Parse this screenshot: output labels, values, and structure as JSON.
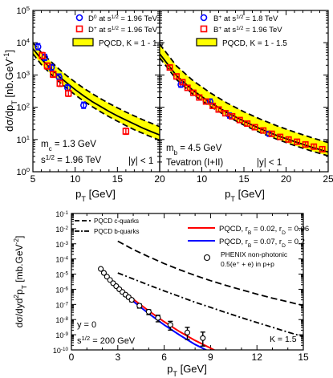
{
  "chart_data": [
    {
      "type": "scatter",
      "ylabel": "dσ/dp",
      "ylabel_sub": "T",
      "ylabel_unit": " [nb.GeV",
      "ylabel_unit_sup": "-1",
      "ylabel_unit_close": "]",
      "xlabel": "p",
      "xlabel_sub": "T",
      "xlabel_unit": " [GeV]",
      "xlim": [
        5,
        20
      ],
      "ylim": [
        1,
        100000
      ],
      "yscale": "log",
      "xticks": [
        5,
        10,
        15,
        20
      ],
      "yticks": [
        {
          "v": 1,
          "m": "10",
          "e": "0"
        },
        {
          "v": 10,
          "m": "10",
          "e": "1"
        },
        {
          "v": 100,
          "m": "10",
          "e": "2"
        },
        {
          "v": 1000,
          "m": "10",
          "e": "3"
        },
        {
          "v": 10000,
          "m": "10",
          "e": "4"
        },
        {
          "v": 100000,
          "m": "10",
          "e": "5"
        }
      ],
      "legend": [
        {
          "name": "D⁰ at s¹ᐟ² = 1.96 TeV",
          "marker": "circle",
          "color": "#0000ff"
        },
        {
          "name": "D⁺ at s¹ᐟ² = 1.96 TeV",
          "marker": "square",
          "color": "#ff0000"
        },
        {
          "name": "PQCD, K = 1 - 1.5",
          "marker": "band",
          "color": "#ffff00"
        }
      ],
      "annotations": [
        "m",
        "c",
        " = 1.3 GeV",
        "s",
        "1/2",
        " = 1.96 TeV",
        "|y| < 1"
      ],
      "series": [
        {
          "name": "D⁰ at s¹ᐟ² = 1.96 TeV",
          "marker": "circle",
          "color": "#0000ff",
          "x": [
            5.6,
            6.4,
            7.2,
            8.1,
            9.1,
            11.0
          ],
          "y": [
            7500,
            3500,
            1700,
            860,
            400,
            115
          ]
        },
        {
          "name": "D⁺ at s¹ᐟ² = 1.96 TeV",
          "marker": "square",
          "color": "#ff0000",
          "x": [
            6.1,
            6.7,
            7.4,
            8.2,
            9.2,
            16.0
          ],
          "y": [
            4000,
            1900,
            1050,
            550,
            270,
            18
          ]
        }
      ],
      "band": {
        "x": [
          5,
          6,
          7,
          8,
          9,
          10,
          11,
          12,
          13,
          14,
          15,
          16,
          17,
          18,
          19,
          20
        ],
        "upper": [
          10000,
          5000,
          2800,
          1600,
          950,
          600,
          390,
          265,
          185,
          132,
          96,
          71,
          54,
          41,
          32,
          25
        ],
        "lower": [
          4500,
          2100,
          1150,
          650,
          390,
          240,
          155,
          105,
          72,
          51,
          37,
          27,
          20,
          15.5,
          12,
          9.5
        ],
        "solid": [
          6500,
          3100,
          1700,
          950,
          570,
          350,
          225,
          150,
          105,
          74,
          54,
          40,
          30,
          22.5,
          17.5,
          13.8
        ]
      }
    },
    {
      "type": "scatter",
      "xlabel": "p",
      "xlabel_sub": "T",
      "xlabel_unit": " [GeV]",
      "xlim": [
        5,
        25
      ],
      "ylim": [
        1,
        100000
      ],
      "yscale": "log",
      "xticks": [
        5,
        10,
        15,
        20,
        25
      ],
      "legend": [
        {
          "name": "B⁺ at s¹ᐟ² = 1.8 TeV",
          "marker": "circle",
          "color": "#0000ff"
        },
        {
          "name": "B⁺ at s¹ᐟ² = 1.96 TeV",
          "marker": "square",
          "color": "#ff0000"
        },
        {
          "name": "PQCD, K = 1 - 1.5",
          "marker": "band",
          "color": "#ffff00"
        }
      ],
      "annotations": [
        "m",
        "b",
        " = 4.5 GeV",
        "Tevatron (I+II)",
        "|y| < 1"
      ],
      "series": [
        {
          "name": "B⁺ at s¹ᐟ² = 1.8 TeV",
          "marker": "circle",
          "color": "#0000ff",
          "x": [
            7.5,
            11.0,
            13.3,
            18.0
          ],
          "y": [
            500,
            150,
            55,
            15
          ]
        },
        {
          "name": "B⁺ at s¹ᐟ² = 1.96 TeV",
          "marker": "square",
          "color": "#ff0000",
          "x": [
            6.2,
            7.0,
            7.7,
            8.3,
            9.0,
            9.7,
            10.5,
            11.3,
            12.0,
            12.8,
            13.6,
            14.5,
            15.4,
            16.3,
            17.3,
            18.3,
            19.3,
            20.3,
            21.3,
            22.3,
            23.3,
            24.3
          ],
          "y": [
            1700,
            900,
            600,
            400,
            280,
            200,
            150,
            110,
            85,
            65,
            52,
            40,
            31,
            24,
            19,
            15,
            12,
            10,
            8.5,
            7,
            6,
            5
          ]
        }
      ],
      "band": {
        "x": [
          5,
          7,
          9,
          11,
          13,
          15,
          17,
          19,
          21,
          23,
          25
        ],
        "upper": [
          9000,
          1900,
          650,
          280,
          135,
          72,
          42,
          26,
          17,
          11.5,
          8
        ],
        "lower": [
          3400,
          720,
          245,
          105,
          52,
          28,
          16,
          10,
          6.5,
          4.4,
          3.1
        ],
        "solid": [
          4500,
          950,
          325,
          140,
          68,
          37,
          21,
          13,
          8.6,
          5.8,
          4.1
        ]
      }
    },
    {
      "type": "line",
      "ylabel": "dσ/dyd",
      "ylabel_sup1": "2",
      "ylabel_p": "p",
      "ylabel_sub": "T",
      "ylabel_unit": " [mb.GeV",
      "ylabel_unit_sup": "-2",
      "ylabel_unit_close": "]",
      "xlabel": "p",
      "xlabel_sub": "T",
      "xlabel_unit": " [GeV]",
      "xlim": [
        0,
        15
      ],
      "ylim": [
        1e-10,
        0.1
      ],
      "yscale": "log",
      "xticks": [
        0,
        3,
        6,
        9,
        12,
        15
      ],
      "yticks": [
        {
          "v": 1e-10,
          "m": "10",
          "e": "-10"
        },
        {
          "v": 1e-09,
          "m": "10",
          "e": "-9"
        },
        {
          "v": 1e-08,
          "m": "10",
          "e": "-8"
        },
        {
          "v": 1e-07,
          "m": "10",
          "e": "-7"
        },
        {
          "v": 1e-06,
          "m": "10",
          "e": "-6"
        },
        {
          "v": 1e-05,
          "m": "10",
          "e": "-5"
        },
        {
          "v": 0.0001,
          "m": "10",
          "e": "-4"
        },
        {
          "v": 0.001,
          "m": "10",
          "e": "-3"
        },
        {
          "v": 0.01,
          "m": "10",
          "e": "-2"
        },
        {
          "v": 0.1,
          "m": "10",
          "e": "-1"
        }
      ],
      "legend": [
        {
          "name": "PQCD c-quarks",
          "style": "dashed",
          "color": "#000000"
        },
        {
          "name": "PQCD b-quarks",
          "style": "dashdot",
          "color": "#000000"
        },
        {
          "name": "PQCD, r",
          "sub1": "B",
          "mid": " = 0.02, r",
          "sub2": "D",
          "end": " = 0.06",
          "style": "solid",
          "color": "#ff0000"
        },
        {
          "name": "PQCD, r",
          "sub1": "B",
          "mid": " = 0.07, r",
          "sub2": "D",
          "end": " = 0.2",
          "style": "solid",
          "color": "#0000ff"
        },
        {
          "name": "PHENIX non-photonic",
          "line2": "0.5(e⁺ + e) in p+p",
          "marker": "circle",
          "color": "#000000"
        }
      ],
      "annotations": [
        "y = 0",
        "s",
        "1/2",
        " = 200 GeV",
        "K = 1.5"
      ],
      "series": [
        {
          "name": "PQCD c-quarks",
          "style": "dashed",
          "color": "#000000",
          "x": [
            3,
            4,
            5,
            6,
            7,
            8,
            9,
            10,
            11,
            12,
            13,
            14,
            15
          ],
          "y": [
            0.0015,
            0.00042,
            0.00014,
            5e-05,
            1.95e-05,
            8.2e-06,
            3.7e-06,
            1.8e-06,
            9.2e-07,
            4.8e-07,
            2.6e-07,
            1.5e-07,
            8.5e-08
          ]
        },
        {
          "name": "PQCD b-quarks",
          "style": "dashdot",
          "color": "#000000",
          "x": [
            3,
            4,
            5,
            6,
            7,
            8,
            9,
            10,
            11,
            12,
            13,
            14,
            15
          ],
          "y": [
            1.2e-05,
            4.8e-06,
            1.9e-06,
            7.8e-07,
            3.3e-07,
            1.4e-07,
            6.4e-08,
            2.9e-08,
            1.35e-08,
            6.4e-09,
            3.1e-09,
            1.5e-09,
            7.5e-10
          ]
        },
        {
          "name": "PQCD, rB = 0.02, rD = 0.06",
          "style": "solid",
          "color": "#ff0000",
          "x": [
            1.8,
            2.5,
            3,
            3.5,
            4,
            5,
            6,
            7,
            8,
            9,
            9.8
          ],
          "y": [
            2.6e-05,
            4.8e-06,
            1.6e-06,
            5.8e-07,
            2.2e-07,
            3.8e-08,
            7.2e-09,
            1.6e-09,
            4.2e-10,
            1.3e-10,
            5e-11
          ]
        },
        {
          "name": "PQCD, rB = 0.07, rD = 0.2",
          "style": "solid",
          "color": "#0000ff",
          "x": [
            1.8,
            2.5,
            3,
            3.5,
            4,
            5,
            6,
            7,
            8,
            9,
            9.5
          ],
          "y": [
            2.4e-05,
            4.2e-06,
            1.3e-06,
            4.5e-07,
            1.6e-07,
            2.5e-08,
            4.5e-09,
            9.5e-10,
            2.3e-10,
            7e-11,
            4e-11
          ]
        },
        {
          "name": "PHENIX non-photonic 0.5(e+ + e) in p+p",
          "marker": "circle",
          "color": "#000000",
          "x": [
            1.9,
            2.1,
            2.3,
            2.5,
            2.7,
            2.9,
            3.1,
            3.3,
            3.5,
            3.7,
            3.9,
            4.4,
            5.0,
            5.6,
            6.4,
            7.5,
            8.5
          ],
          "y": [
            2.2e-05,
            1.2e-05,
            6.8e-06,
            4.1e-06,
            2.5e-06,
            1.6e-06,
            1e-06,
            6.6e-07,
            4.4e-07,
            3e-07,
            2e-07,
            8.2e-08,
            3.3e-08,
            1.3e-08,
            4.5e-09,
            1.4e-09,
            6e-10
          ],
          "err_hi": [
            1.1,
            1.1,
            1.1,
            1.1,
            1.15,
            1.15,
            1.15,
            1.2,
            1.2,
            1.2,
            1.25,
            1.3,
            1.35,
            1.5,
            1.7,
            2.2,
            2.5
          ],
          "err_lo": [
            0.9,
            0.9,
            0.9,
            0.9,
            0.85,
            0.85,
            0.85,
            0.8,
            0.8,
            0.8,
            0.75,
            0.7,
            0.65,
            0.55,
            0.45,
            0.35,
            0.3
          ]
        }
      ]
    }
  ]
}
